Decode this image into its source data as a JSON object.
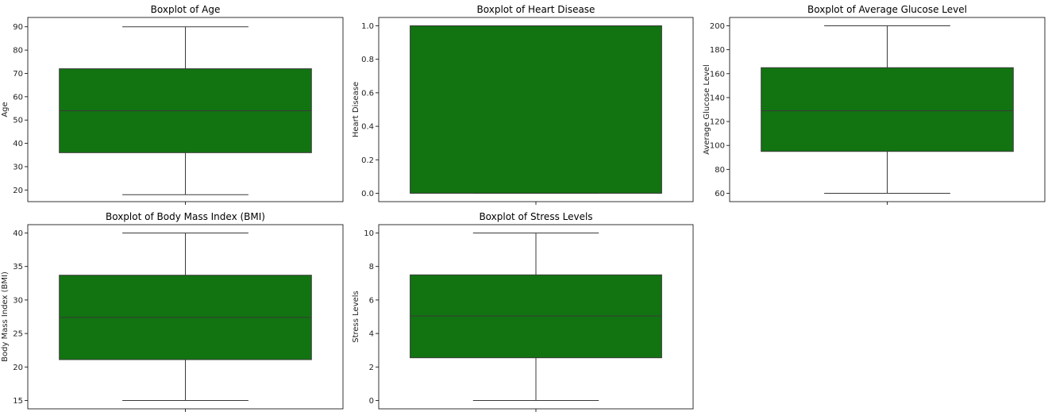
{
  "colors": {
    "box_fill": "#117411",
    "line": "#3a3a3a",
    "axes": "#000000"
  },
  "chart_data": [
    {
      "type": "boxplot",
      "title": "Boxplot of Age",
      "xlabel": "",
      "ylabel": "Age",
      "ylim": [
        15,
        94
      ],
      "yticks": [
        20,
        30,
        40,
        50,
        60,
        70,
        80,
        90
      ],
      "ytick_labels": [
        "20",
        "30",
        "40",
        "50",
        "60",
        "70",
        "80",
        "90"
      ],
      "whisker_low": 18,
      "q1": 36,
      "median": 54,
      "q3": 72,
      "whisker_high": 90
    },
    {
      "type": "boxplot",
      "title": "Boxplot of Heart Disease",
      "xlabel": "",
      "ylabel": "Heart Disease",
      "ylim": [
        -0.05,
        1.05
      ],
      "yticks": [
        0.0,
        0.2,
        0.4,
        0.6,
        0.8,
        1.0
      ],
      "ytick_labels": [
        "0.0",
        "0.2",
        "0.4",
        "0.6",
        "0.8",
        "1.0"
      ],
      "whisker_low": 0,
      "q1": 0,
      "median": 1,
      "q3": 1,
      "whisker_high": 1
    },
    {
      "type": "boxplot",
      "title": "Boxplot of Average Glucose Level",
      "xlabel": "",
      "ylabel": "Average Glucose Level",
      "ylim": [
        53,
        207
      ],
      "yticks": [
        60,
        80,
        100,
        120,
        140,
        160,
        180,
        200
      ],
      "ytick_labels": [
        "60",
        "80",
        "100",
        "120",
        "140",
        "160",
        "180",
        "200"
      ],
      "whisker_low": 60,
      "q1": 95,
      "median": 129,
      "q3": 165,
      "whisker_high": 200
    },
    {
      "type": "boxplot",
      "title": "Boxplot of Body Mass Index (BMI)",
      "xlabel": "",
      "ylabel": "Body Mass Index (BMI)",
      "ylim": [
        13.75,
        41.25
      ],
      "yticks": [
        15,
        20,
        25,
        30,
        35,
        40
      ],
      "ytick_labels": [
        "15",
        "20",
        "25",
        "30",
        "35",
        "40"
      ],
      "whisker_low": 15,
      "q1": 21.1,
      "median": 27.4,
      "q3": 33.7,
      "whisker_high": 40
    },
    {
      "type": "boxplot",
      "title": "Boxplot of Stress Levels",
      "xlabel": "",
      "ylabel": "Stress Levels",
      "ylim": [
        -0.5,
        10.5
      ],
      "yticks": [
        0,
        2,
        4,
        6,
        8,
        10
      ],
      "ytick_labels": [
        "0",
        "2",
        "4",
        "6",
        "8",
        "10"
      ],
      "whisker_low": 0,
      "q1": 2.55,
      "median": 5.05,
      "q3": 7.5,
      "whisker_high": 10
    }
  ]
}
